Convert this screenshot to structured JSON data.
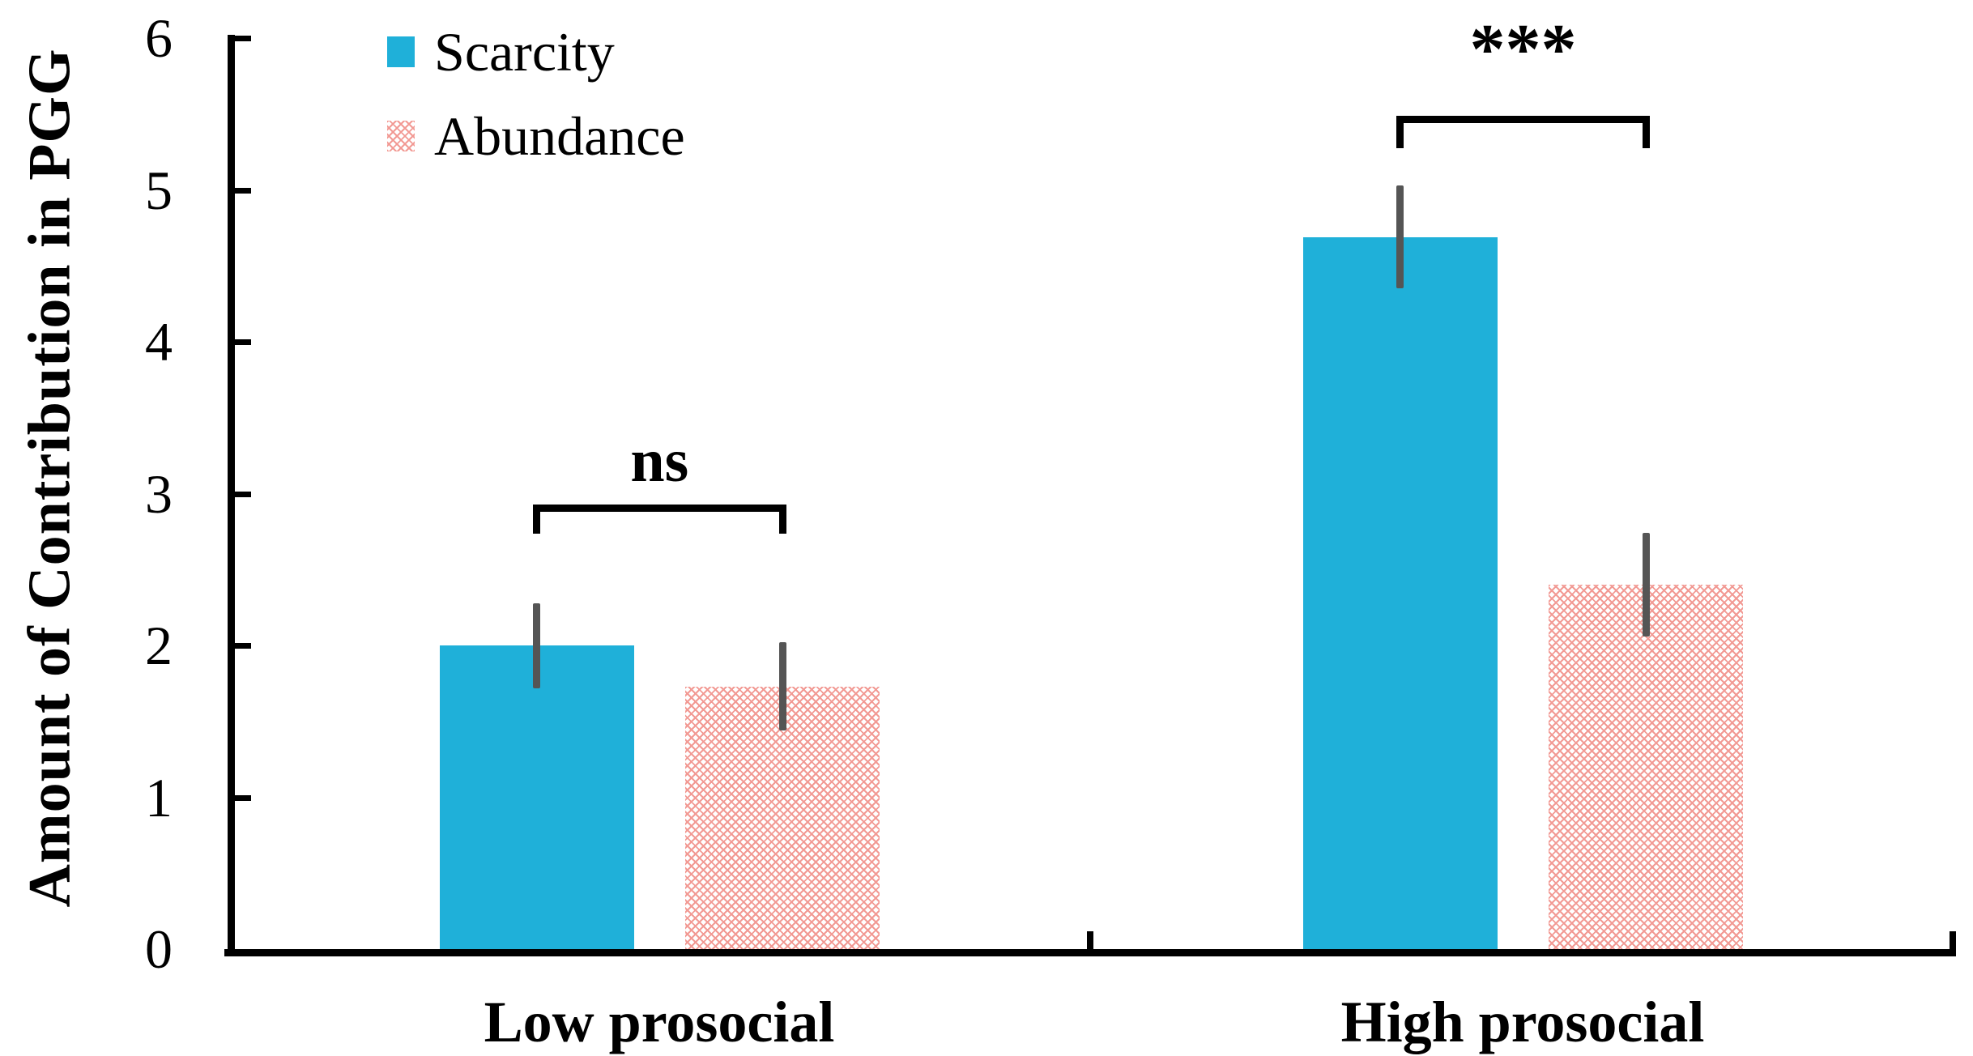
{
  "chart_data": {
    "type": "bar",
    "title": "",
    "ylabel": "Amount of Contribution in PGG",
    "xlabel": "",
    "categories": [
      "Low prosocial",
      "High prosocial"
    ],
    "series": [
      {
        "name": "Scarcity",
        "fill": "solid",
        "color": "#1fb0d9",
        "values": [
          2.0,
          4.69
        ],
        "errors": [
          0.28,
          0.34
        ]
      },
      {
        "name": "Abundance",
        "fill": "hatch",
        "color": "#f29a94",
        "values": [
          1.73,
          2.4
        ],
        "errors": [
          0.29,
          0.34
        ]
      }
    ],
    "yticks": [
      0,
      1,
      2,
      3,
      4,
      5,
      6
    ],
    "ylim": [
      0,
      6
    ],
    "grid": false,
    "legend_position": "top-left-inside",
    "error_bar_color": "#555555",
    "annotations": [
      {
        "group": 0,
        "label": "ns",
        "y": 2.93
      },
      {
        "group": 1,
        "label": "***",
        "y": 5.49
      }
    ]
  }
}
